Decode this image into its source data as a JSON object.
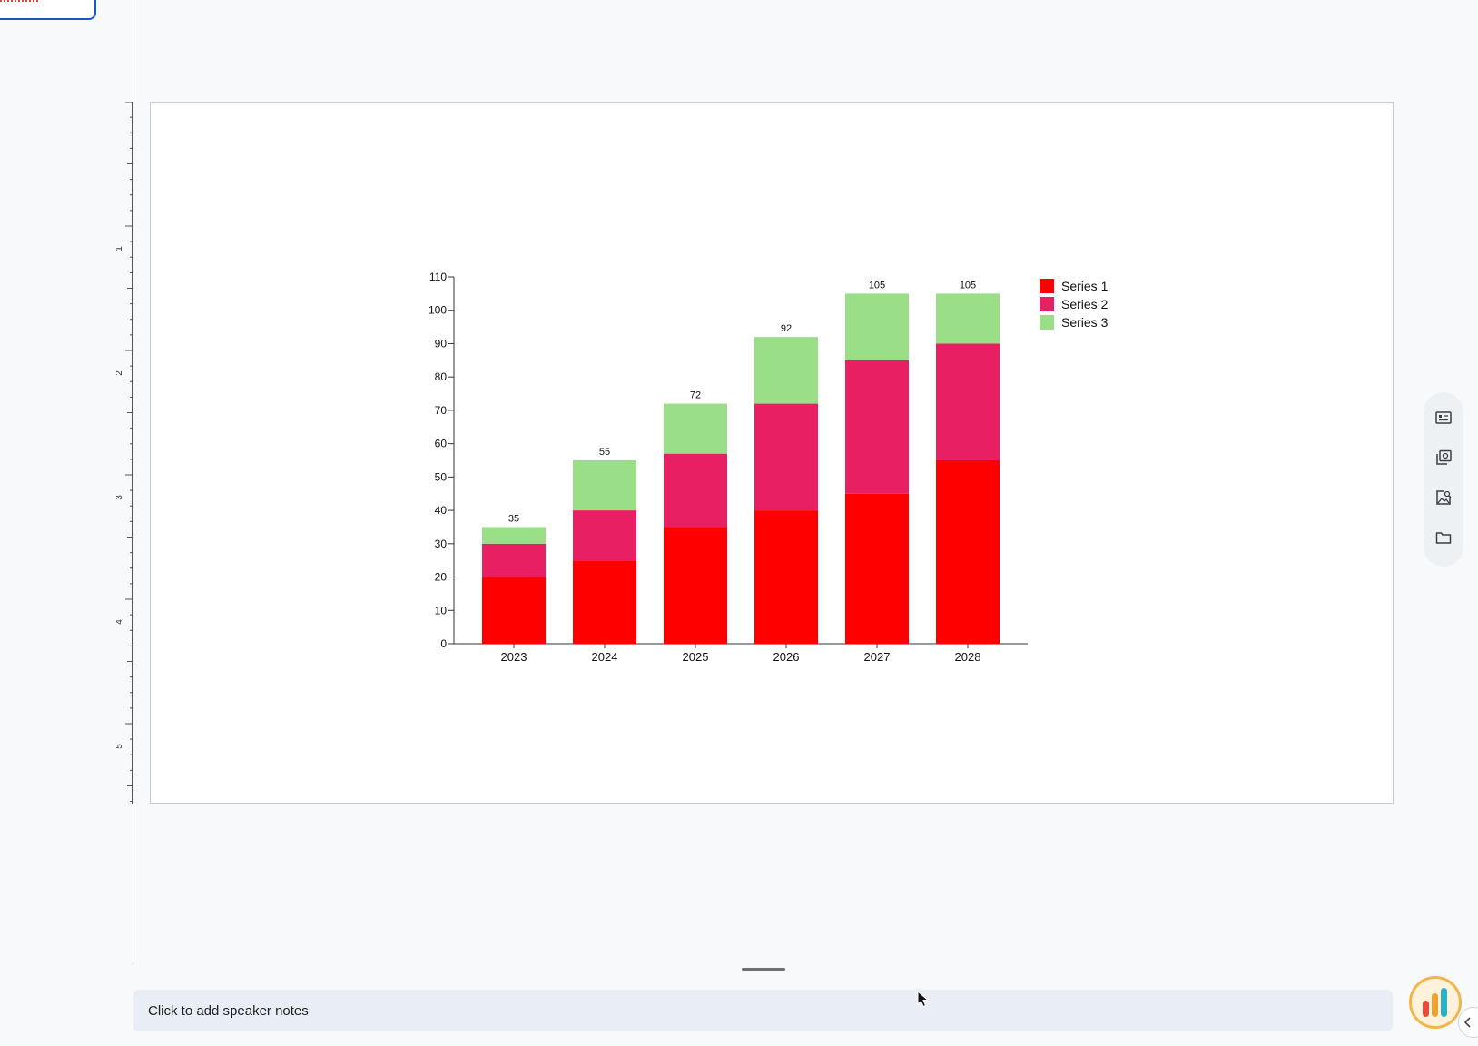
{
  "ruler": {
    "labels": [
      "1",
      "2",
      "3",
      "4",
      "5"
    ]
  },
  "chart_data": {
    "type": "bar",
    "stacked": true,
    "categories": [
      "2023",
      "2024",
      "2025",
      "2026",
      "2027",
      "2028"
    ],
    "series": [
      {
        "name": "Series 1",
        "color": "#ff0000",
        "values": [
          20,
          25,
          35,
          40,
          45,
          55
        ]
      },
      {
        "name": "Series 2",
        "color": "#e82063",
        "values": [
          10,
          15,
          22,
          32,
          40,
          35
        ]
      },
      {
        "name": "Series 3",
        "color": "#9ade88",
        "values": [
          5,
          15,
          15,
          20,
          20,
          15
        ]
      }
    ],
    "totals": [
      "35",
      "55",
      "72",
      "92",
      "105",
      "105"
    ],
    "yticks": [
      "0",
      "10",
      "20",
      "30",
      "40",
      "50",
      "60",
      "70",
      "80",
      "90",
      "100",
      "110"
    ],
    "ylim": [
      0,
      110
    ],
    "grid": false,
    "legend_position": "right-top"
  },
  "side_toolbar": {
    "items": [
      {
        "name": "format-panel-icon"
      },
      {
        "name": "slides-panel-icon"
      },
      {
        "name": "image-search-icon"
      },
      {
        "name": "folder-icon"
      }
    ]
  },
  "notes": {
    "placeholder": "Click to add speaker notes"
  },
  "colors": {
    "accent": "#1a56c7",
    "notes_bg": "#e8edf6",
    "logo_ring": "#f2b54a"
  }
}
